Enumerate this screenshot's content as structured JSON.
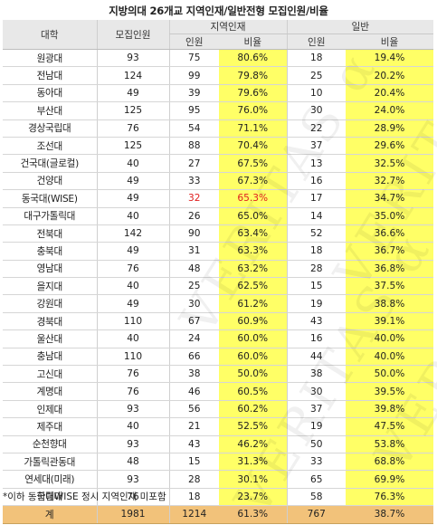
{
  "title": "지방의대 26개교 지역인재/일반전형 모집인원/비율",
  "headers": {
    "university": "대학",
    "recruit": "모집인원",
    "regional": "지역인재",
    "general": "일반",
    "count": "인원",
    "ratio": "비율"
  },
  "rows": [
    {
      "name": "원광대",
      "total": "93",
      "reg_n": "75",
      "reg_r": "80.6%",
      "gen_n": "18",
      "gen_r": "19.4%"
    },
    {
      "name": "전남대",
      "total": "124",
      "reg_n": "99",
      "reg_r": "79.8%",
      "gen_n": "25",
      "gen_r": "20.2%"
    },
    {
      "name": "동아대",
      "total": "49",
      "reg_n": "39",
      "reg_r": "79.6%",
      "gen_n": "10",
      "gen_r": "20.4%"
    },
    {
      "name": "부산대",
      "total": "125",
      "reg_n": "95",
      "reg_r": "76.0%",
      "gen_n": "30",
      "gen_r": "24.0%"
    },
    {
      "name": "경상국립대",
      "total": "76",
      "reg_n": "54",
      "reg_r": "71.1%",
      "gen_n": "22",
      "gen_r": "28.9%"
    },
    {
      "name": "조선대",
      "total": "125",
      "reg_n": "88",
      "reg_r": "70.4%",
      "gen_n": "37",
      "gen_r": "29.6%"
    },
    {
      "name": "건국대(글로컬)",
      "total": "40",
      "reg_n": "27",
      "reg_r": "67.5%",
      "gen_n": "13",
      "gen_r": "32.5%"
    },
    {
      "name": "건양대",
      "total": "49",
      "reg_n": "33",
      "reg_r": "67.3%",
      "gen_n": "16",
      "gen_r": "32.7%"
    },
    {
      "name": "동국대(WISE)",
      "total": "49",
      "reg_n": "32",
      "reg_r": "65.3%",
      "gen_n": "17",
      "gen_r": "34.7%",
      "flag": true
    },
    {
      "name": "대구가톨릭대",
      "total": "40",
      "reg_n": "26",
      "reg_r": "65.0%",
      "gen_n": "14",
      "gen_r": "35.0%"
    },
    {
      "name": "전북대",
      "total": "142",
      "reg_n": "90",
      "reg_r": "63.4%",
      "gen_n": "52",
      "gen_r": "36.6%"
    },
    {
      "name": "충북대",
      "total": "49",
      "reg_n": "31",
      "reg_r": "63.3%",
      "gen_n": "18",
      "gen_r": "36.7%"
    },
    {
      "name": "영남대",
      "total": "76",
      "reg_n": "48",
      "reg_r": "63.2%",
      "gen_n": "28",
      "gen_r": "36.8%"
    },
    {
      "name": "을지대",
      "total": "40",
      "reg_n": "25",
      "reg_r": "62.5%",
      "gen_n": "15",
      "gen_r": "37.5%"
    },
    {
      "name": "강원대",
      "total": "49",
      "reg_n": "30",
      "reg_r": "61.2%",
      "gen_n": "19",
      "gen_r": "38.8%"
    },
    {
      "name": "경북대",
      "total": "110",
      "reg_n": "67",
      "reg_r": "60.9%",
      "gen_n": "43",
      "gen_r": "39.1%"
    },
    {
      "name": "울산대",
      "total": "40",
      "reg_n": "24",
      "reg_r": "60.0%",
      "gen_n": "16",
      "gen_r": "40.0%"
    },
    {
      "name": "충남대",
      "total": "110",
      "reg_n": "66",
      "reg_r": "60.0%",
      "gen_n": "44",
      "gen_r": "40.0%"
    },
    {
      "name": "고신대",
      "total": "76",
      "reg_n": "38",
      "reg_r": "50.0%",
      "gen_n": "38",
      "gen_r": "50.0%"
    },
    {
      "name": "계명대",
      "total": "76",
      "reg_n": "46",
      "reg_r": "60.5%",
      "gen_n": "30",
      "gen_r": "39.5%"
    },
    {
      "name": "인제대",
      "total": "93",
      "reg_n": "56",
      "reg_r": "60.2%",
      "gen_n": "37",
      "gen_r": "39.8%"
    },
    {
      "name": "제주대",
      "total": "40",
      "reg_n": "21",
      "reg_r": "52.5%",
      "gen_n": "19",
      "gen_r": "47.5%"
    },
    {
      "name": "순천향대",
      "total": "93",
      "reg_n": "43",
      "reg_r": "46.2%",
      "gen_n": "50",
      "gen_r": "53.8%"
    },
    {
      "name": "가톨릭관동대",
      "total": "48",
      "reg_n": "15",
      "reg_r": "31.3%",
      "gen_n": "33",
      "gen_r": "68.8%"
    },
    {
      "name": "연세대(미래)",
      "total": "93",
      "reg_n": "28",
      "reg_r": "30.1%",
      "gen_n": "65",
      "gen_r": "69.9%"
    },
    {
      "name": "한림대",
      "total": "76",
      "reg_n": "18",
      "reg_r": "23.7%",
      "gen_n": "58",
      "gen_r": "76.3%"
    }
  ],
  "totals": {
    "name": "계",
    "total": "1981",
    "reg_n": "1214",
    "reg_r": "61.3%",
    "gen_n": "767",
    "gen_r": "38.7%"
  },
  "footnote": "*이하 동국대WISE 정시 지역인재 미포함",
  "watermark": "VERITAS α",
  "colors": {
    "highlight": "#ffff66",
    "total_row": "#f2c27a",
    "flag_text": "#e02020",
    "header_bg": "#e8e8e8"
  }
}
